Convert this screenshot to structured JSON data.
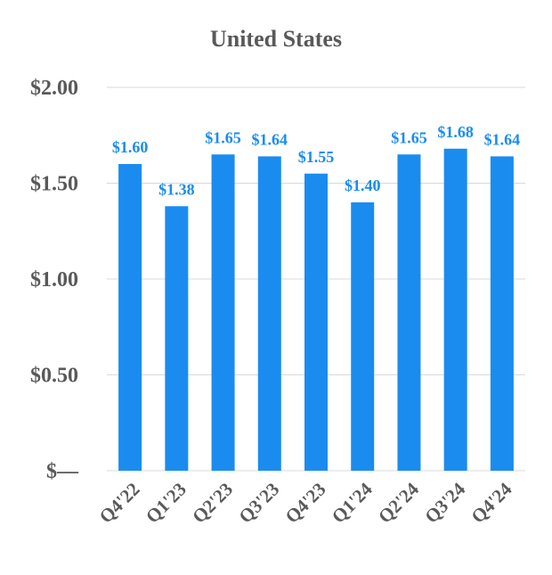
{
  "chart_data": {
    "type": "bar",
    "title": "United States",
    "categories": [
      "Q4'22",
      "Q1'23",
      "Q2'23",
      "Q3'23",
      "Q4'23",
      "Q1'24",
      "Q2'24",
      "Q3'24",
      "Q4'24"
    ],
    "values": [
      1.6,
      1.38,
      1.65,
      1.64,
      1.55,
      1.4,
      1.65,
      1.68,
      1.64
    ],
    "data_labels": [
      "$1.60",
      "$1.38",
      "$1.65",
      "$1.64",
      "$1.55",
      "$1.40",
      "$1.65",
      "$1.68",
      "$1.64"
    ],
    "y_ticks": [
      0,
      0.5,
      1.0,
      1.5,
      2.0
    ],
    "y_tick_labels": [
      "$—",
      "$0.50",
      "$1.00",
      "$1.50",
      "$2.00"
    ],
    "ylim": [
      0,
      2.0
    ],
    "xlabel": "",
    "ylabel": "",
    "grid": true,
    "legend": "none",
    "bar_color": "#1a8cf0",
    "label_color": "#1a8cf0"
  }
}
